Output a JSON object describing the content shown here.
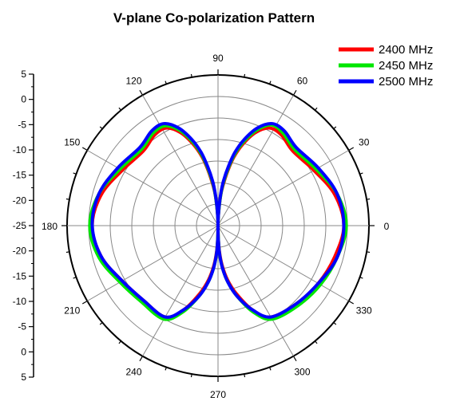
{
  "chart_data": {
    "type": "polar-line",
    "title": "V-plane Co-polarization Pattern",
    "angle_ticks": [
      "0",
      "30",
      "60",
      "90",
      "120",
      "150",
      "180",
      "210",
      "240",
      "270",
      "300",
      "330"
    ],
    "radial_axis": {
      "min": -25,
      "max": 5,
      "ticks": [
        5,
        0,
        -5,
        -10,
        -15,
        -20,
        -25
      ],
      "tick_labels_top": [
        "5",
        "0",
        "-5",
        "-10",
        "-15",
        "-20",
        "-25"
      ],
      "tick_labels_bottom": [
        "-20",
        "-15",
        "-10",
        "-5",
        "0",
        "5"
      ]
    },
    "grid": true,
    "legend_position": "top-right",
    "angles_deg": [
      0,
      15,
      30,
      45,
      55,
      62,
      68,
      73,
      77,
      80,
      83,
      85,
      87,
      89,
      90,
      91,
      93,
      95,
      97,
      100,
      103,
      107,
      112,
      118,
      125,
      135,
      150,
      165,
      180,
      195,
      210,
      225,
      240,
      248,
      255,
      260,
      264,
      267,
      269,
      270,
      271,
      273,
      276,
      280,
      285,
      292,
      300,
      315,
      330,
      345
    ],
    "series": [
      {
        "name": "2400 MHz",
        "color": "#ff0000",
        "values": [
          0,
          -1,
          -3,
          -4,
          -3,
          -3,
          -5,
          -8,
          -11,
          -14,
          -17,
          -19,
          -22,
          -24,
          -25,
          -24,
          -22,
          -19,
          -17,
          -14,
          -11,
          -8,
          -5,
          -3,
          -3,
          -4,
          -3,
          -1,
          0,
          -1,
          -3,
          -4,
          -4,
          -7,
          -11,
          -14,
          -17,
          -20,
          -23,
          -25,
          -23,
          -20,
          -17,
          -14,
          -11,
          -7,
          -4,
          -3,
          -2,
          -1
        ]
      },
      {
        "name": "2450 MHz",
        "color": "#00e600",
        "values": [
          0.5,
          -0.5,
          -2.5,
          -3.5,
          -2.5,
          -2.3,
          -4.5,
          -7.5,
          -10.5,
          -13.5,
          -16.5,
          -19,
          -22,
          -24,
          -25,
          -24,
          -22,
          -19,
          -16.5,
          -13.5,
          -10.5,
          -7.5,
          -4.5,
          -2.5,
          -2.5,
          -3.5,
          -2.5,
          -0.5,
          0.5,
          -0.5,
          -2.5,
          -3.5,
          -3.5,
          -6.5,
          -10.5,
          -13.5,
          -16.5,
          -19.5,
          -23,
          -25,
          -23,
          -19.5,
          -16.5,
          -13.5,
          -10.5,
          -6.5,
          -3.5,
          -2.5,
          -1.5,
          -0.5
        ]
      },
      {
        "name": "2500 MHz",
        "color": "#0000ff",
        "values": [
          0,
          -0.5,
          -2,
          -3,
          -2,
          -2,
          -4,
          -7,
          -10,
          -13,
          -16,
          -18.5,
          -21.5,
          -24,
          -25,
          -24,
          -21.5,
          -18.5,
          -16,
          -13,
          -10,
          -7,
          -4,
          -2,
          -2,
          -3,
          -2,
          -0.5,
          0,
          -1,
          -3,
          -4,
          -4,
          -7,
          -10.5,
          -13.5,
          -16.5,
          -19.5,
          -22.5,
          -25,
          -22.5,
          -19.5,
          -16.5,
          -13.5,
          -10.5,
          -7,
          -4,
          -3,
          -2,
          -0.5
        ]
      }
    ]
  }
}
